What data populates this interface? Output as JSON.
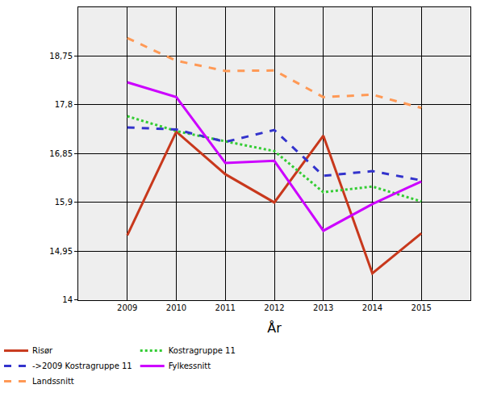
{
  "chart_data": {
    "type": "line",
    "x_label": "År",
    "x": [
      2009,
      2010,
      2011,
      2012,
      2013,
      2014,
      2015
    ],
    "xlim": [
      2008,
      2016
    ],
    "xticks": [
      2009,
      2010,
      2011,
      2012,
      2013,
      2014,
      2015
    ],
    "ylim": [
      14,
      19.7
    ],
    "yticks": [
      14,
      {
        "value": 14.95,
        "label": "14,95"
      },
      {
        "value": 15.9,
        "label": "15,9"
      },
      {
        "value": 16.85,
        "label": "16,85"
      },
      {
        "value": 17.8,
        "label": "17,8"
      },
      {
        "value": 18.75,
        "label": "18,75"
      }
    ],
    "grid": true,
    "legend": "bottom",
    "series": [
      {
        "name": "Risør",
        "color": "#c8381c",
        "line_style": "solid",
        "values": [
          15.26,
          17.28,
          16.45,
          15.9,
          17.2,
          14.52,
          15.3
        ]
      },
      {
        "name": "Kostragruppe 11",
        "color": "#33cc33",
        "line_style": "dot",
        "values": [
          17.58,
          17.29,
          17.09,
          16.9,
          16.1,
          16.21,
          15.92
        ]
      },
      {
        "name": "->2009 Kostragruppe 11",
        "color": "#3333cc",
        "line_style": "dash",
        "values": [
          17.36,
          17.32,
          17.08,
          17.31,
          16.42,
          16.51,
          16.33
        ]
      },
      {
        "name": "Fylkessnitt",
        "color": "#cc00ff",
        "line_style": "solid",
        "values": [
          18.24,
          17.95,
          16.67,
          16.71,
          15.35,
          15.87,
          16.31
        ]
      },
      {
        "name": "Landssnitt",
        "color": "#ff9955",
        "line_style": "dash",
        "values": [
          19.1,
          18.66,
          18.46,
          18.47,
          17.95,
          18.0,
          17.74
        ]
      }
    ]
  }
}
